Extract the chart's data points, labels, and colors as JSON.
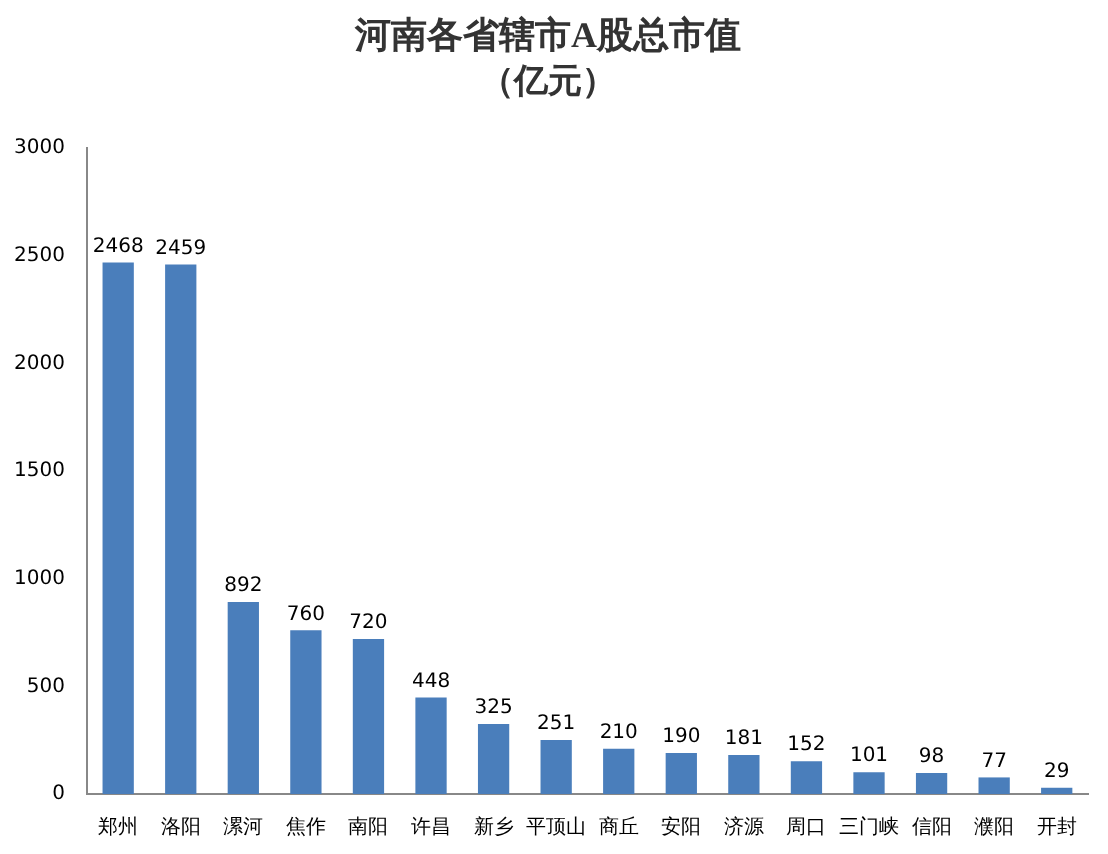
{
  "chart_data": {
    "type": "bar",
    "title": "河南各省辖市A股总市值",
    "subtitle": "（亿元）",
    "categories": [
      "郑州",
      "洛阳",
      "漯河",
      "焦作",
      "南阳",
      "许昌",
      "新乡",
      "平顶山",
      "商丘",
      "安阳",
      "济源",
      "周口",
      "三门峡",
      "信阳",
      "濮阳",
      "开封"
    ],
    "values": [
      2468,
      2459,
      892,
      760,
      720,
      448,
      325,
      251,
      210,
      190,
      181,
      152,
      101,
      98,
      77,
      29
    ],
    "color": "#4a7ebb",
    "ylim": [
      0,
      3000
    ],
    "yticks": [
      0,
      500,
      1000,
      1500,
      2000,
      2500,
      3000
    ],
    "grid": false,
    "legend": false,
    "data_labels": true
  }
}
